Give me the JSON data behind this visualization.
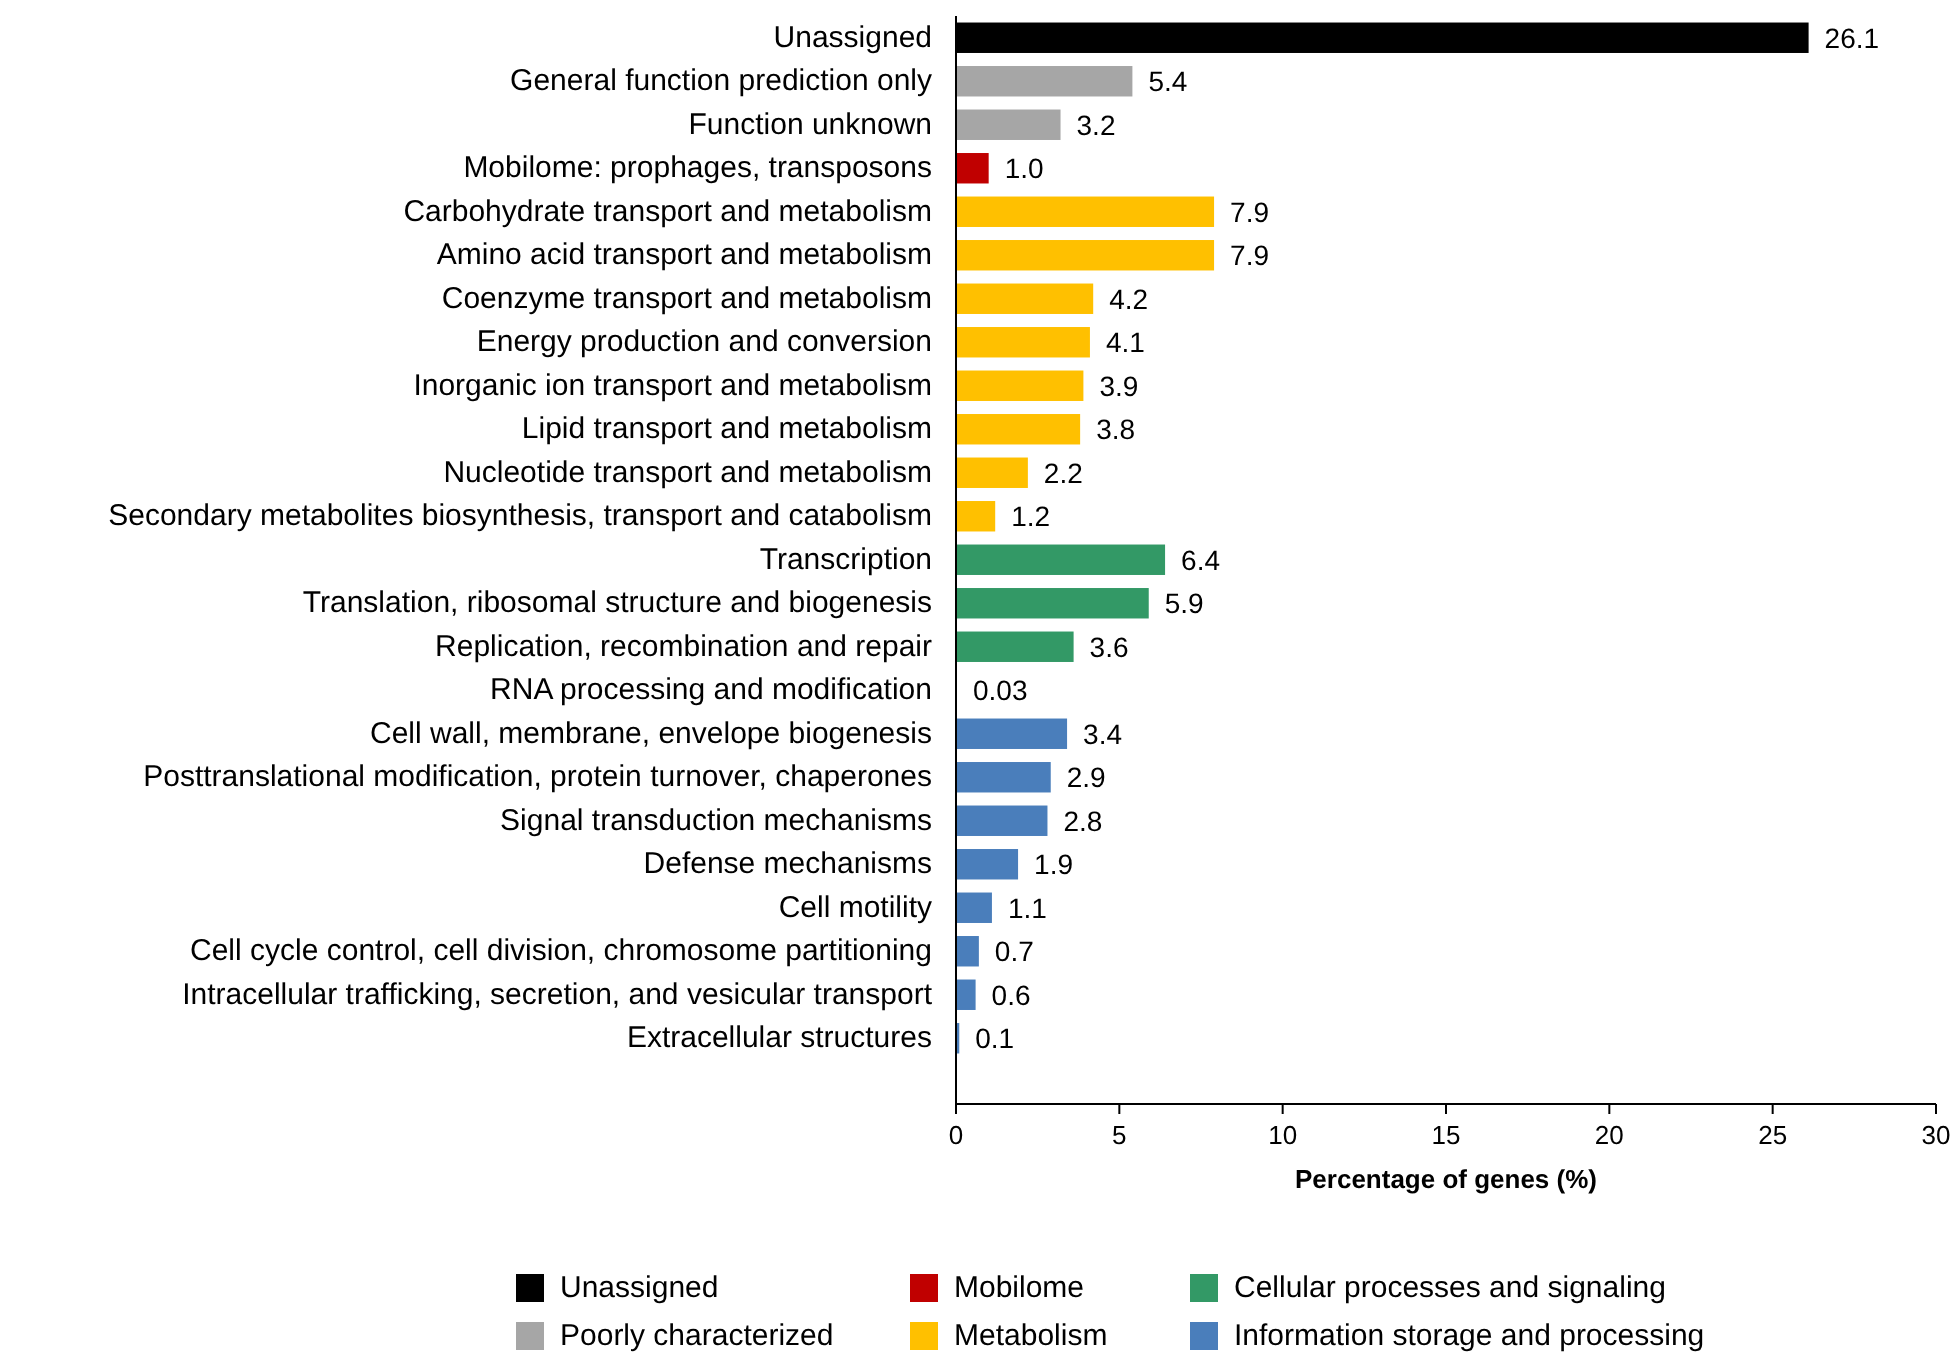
{
  "chart_data": {
    "type": "bar",
    "orientation": "horizontal",
    "xlabel": "Percentage of genes (%)",
    "categories": [
      "Unassigned",
      "General function prediction only",
      "Function unknown",
      "Mobilome: prophages, transposons",
      "Carbohydrate transport and metabolism",
      "Amino acid transport and metabolism",
      "Coenzyme transport and metabolism",
      "Energy production and conversion",
      "Inorganic ion transport and metabolism",
      "Lipid transport and metabolism",
      "Nucleotide transport and metabolism",
      "Secondary metabolites biosynthesis, transport and catabolism",
      "Transcription",
      "Translation, ribosomal structure and biogenesis",
      "Replication, recombination and repair",
      "RNA processing and modification",
      "Cell wall, membrane, envelope biogenesis",
      "Posttranslational modification, protein turnover, chaperones",
      "Signal transduction mechanisms",
      "Defense mechanisms",
      "Cell motility",
      "Cell cycle control, cell division, chromosome partitioning",
      "Intracellular trafficking, secretion, and vesicular transport",
      "Extracellular structures"
    ],
    "series": [
      {
        "name": "Unassigned",
        "color": "#000000",
        "values": [
          26.1,
          null,
          null,
          null,
          null,
          null,
          null,
          null,
          null,
          null,
          null,
          null,
          null,
          null,
          null,
          null,
          null,
          null,
          null,
          null,
          null,
          null,
          null,
          null
        ],
        "value_labels": [
          "26.1",
          null,
          null,
          null,
          null,
          null,
          null,
          null,
          null,
          null,
          null,
          null,
          null,
          null,
          null,
          null,
          null,
          null,
          null,
          null,
          null,
          null,
          null,
          null
        ]
      },
      {
        "name": "Poorly characterized",
        "color": "#a6a6a6",
        "values": [
          null,
          5.4,
          3.2,
          null,
          null,
          null,
          null,
          null,
          null,
          null,
          null,
          null,
          null,
          null,
          null,
          null,
          null,
          null,
          null,
          null,
          null,
          null,
          null,
          null
        ],
        "value_labels": [
          null,
          "5.4",
          "3.2",
          null,
          null,
          null,
          null,
          null,
          null,
          null,
          null,
          null,
          null,
          null,
          null,
          null,
          null,
          null,
          null,
          null,
          null,
          null,
          null,
          null
        ]
      },
      {
        "name": "Mobilome",
        "color": "#c00000",
        "values": [
          null,
          null,
          null,
          1.0,
          null,
          null,
          null,
          null,
          null,
          null,
          null,
          null,
          null,
          null,
          null,
          null,
          null,
          null,
          null,
          null,
          null,
          null,
          null,
          null
        ],
        "value_labels": [
          null,
          null,
          null,
          "1.0",
          null,
          null,
          null,
          null,
          null,
          null,
          null,
          null,
          null,
          null,
          null,
          null,
          null,
          null,
          null,
          null,
          null,
          null,
          null,
          null
        ]
      },
      {
        "name": "Metabolism",
        "color": "#ffc000",
        "values": [
          null,
          null,
          null,
          null,
          7.9,
          7.9,
          4.2,
          4.1,
          3.9,
          3.8,
          2.2,
          1.2,
          null,
          null,
          null,
          null,
          null,
          null,
          null,
          null,
          null,
          null,
          null,
          null
        ],
        "value_labels": [
          null,
          null,
          null,
          null,
          "7.9",
          "7.9",
          "4.2",
          "4.1",
          "3.9",
          "3.8",
          "2.2",
          "1.2",
          null,
          null,
          null,
          null,
          null,
          null,
          null,
          null,
          null,
          null,
          null,
          null
        ]
      },
      {
        "name": "Cellular processes and signaling",
        "color": "#339966",
        "values": [
          null,
          null,
          null,
          null,
          null,
          null,
          null,
          null,
          null,
          null,
          null,
          null,
          6.4,
          5.9,
          3.6,
          0.03,
          null,
          null,
          null,
          null,
          null,
          null,
          null,
          null
        ],
        "value_labels": [
          null,
          null,
          null,
          null,
          null,
          null,
          null,
          null,
          null,
          null,
          null,
          null,
          "6.4",
          "5.9",
          "3.6",
          "0.03",
          null,
          null,
          null,
          null,
          null,
          null,
          null,
          null
        ]
      },
      {
        "name": "Information storage and processing",
        "color": "#4a7ebb",
        "values": [
          null,
          null,
          null,
          null,
          null,
          null,
          null,
          null,
          null,
          null,
          null,
          null,
          null,
          null,
          null,
          null,
          3.4,
          2.9,
          2.8,
          1.9,
          1.1,
          0.7,
          0.6,
          0.1
        ],
        "value_labels": [
          null,
          null,
          null,
          null,
          null,
          null,
          null,
          null,
          null,
          null,
          null,
          null,
          null,
          null,
          null,
          null,
          "3.4",
          "2.9",
          "2.8",
          "1.9",
          "1.1",
          "0.7",
          "0.6",
          "0.1"
        ]
      }
    ],
    "xlim": [
      0,
      30
    ],
    "xticks": [
      0,
      5,
      10,
      15,
      20,
      25,
      30
    ],
    "grid": false,
    "legend": "bottom"
  }
}
